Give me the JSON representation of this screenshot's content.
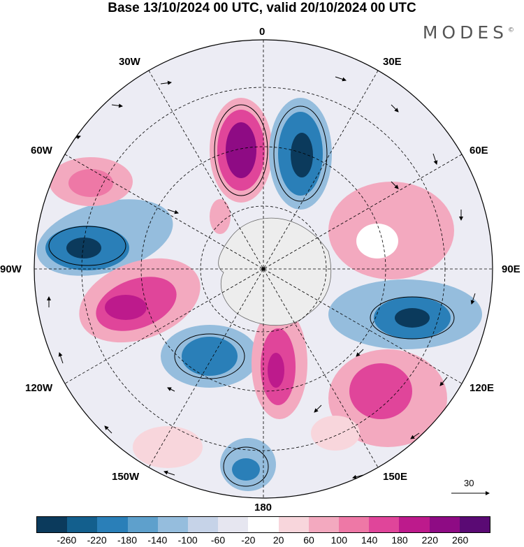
{
  "title": "Base 13/10/2024 00 UTC, valid 20/10/2024 00 UTC",
  "brand": "MODES",
  "brand_mark": "©",
  "map": {
    "projection": "south-polar-stereographic",
    "longitude_labels": {
      "top": "0",
      "top_right": "30E",
      "right_upper": "60E",
      "right": "90E",
      "right_lower": "120E",
      "bottom_right": "150E",
      "bottom": "180",
      "bottom_left": "150W",
      "left_lower": "120W",
      "left": "90W",
      "left_upper": "60W",
      "top_left": "30W"
    },
    "reference_vector": "30"
  },
  "colorbar": {
    "colors": [
      "#0b3a5c",
      "#135f8d",
      "#2a7fb8",
      "#5ea0cc",
      "#95bddd",
      "#c6d3e8",
      "#e6e6f0",
      "#ffffff",
      "#f8d6dc",
      "#f3a9bf",
      "#ee78a6",
      "#e0459a",
      "#bd1a8c",
      "#8e0b84",
      "#5a0a74"
    ],
    "ticks": [
      "-260",
      "-220",
      "-180",
      "-140",
      "-100",
      "-60",
      "-20",
      "20",
      "60",
      "100",
      "140",
      "180",
      "220",
      "260"
    ]
  }
}
